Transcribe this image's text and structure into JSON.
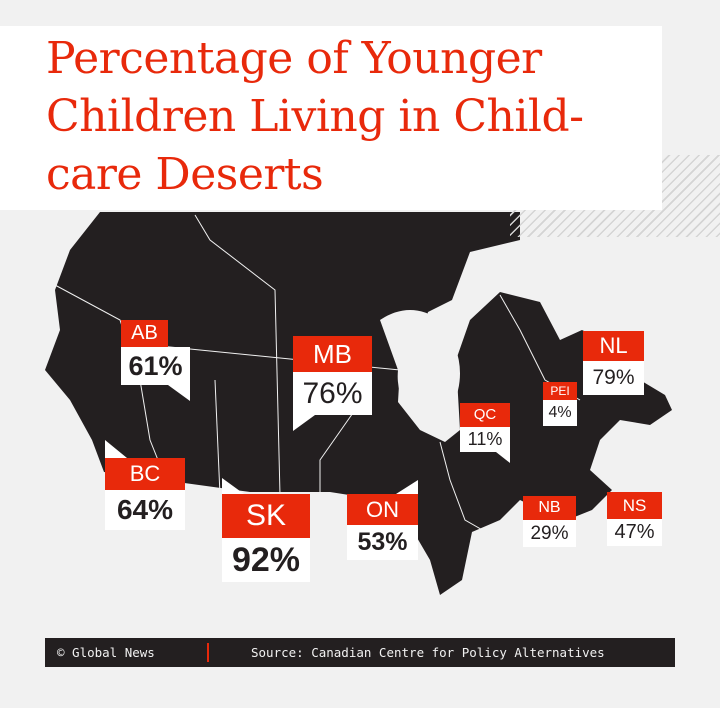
{
  "title": "Percentage of Younger Children Living in Child-care Deserts",
  "colors": {
    "accent": "#e8290b",
    "map": "#231f20",
    "background": "#f1f1f1"
  },
  "provinces": [
    {
      "code": "AB",
      "value": "61%"
    },
    {
      "code": "MB",
      "value": "76%"
    },
    {
      "code": "BC",
      "value": "64%"
    },
    {
      "code": "SK",
      "value": "92%"
    },
    {
      "code": "ON",
      "value": "53%"
    },
    {
      "code": "QC",
      "value": "11%"
    },
    {
      "code": "PEI",
      "value": "4%"
    },
    {
      "code": "NL",
      "value": "79%"
    },
    {
      "code": "NB",
      "value": "29%"
    },
    {
      "code": "NS",
      "value": "47%"
    }
  ],
  "footer": {
    "credit": "© Global News",
    "source": "Source: Canadian Centre for Policy Alternatives"
  }
}
